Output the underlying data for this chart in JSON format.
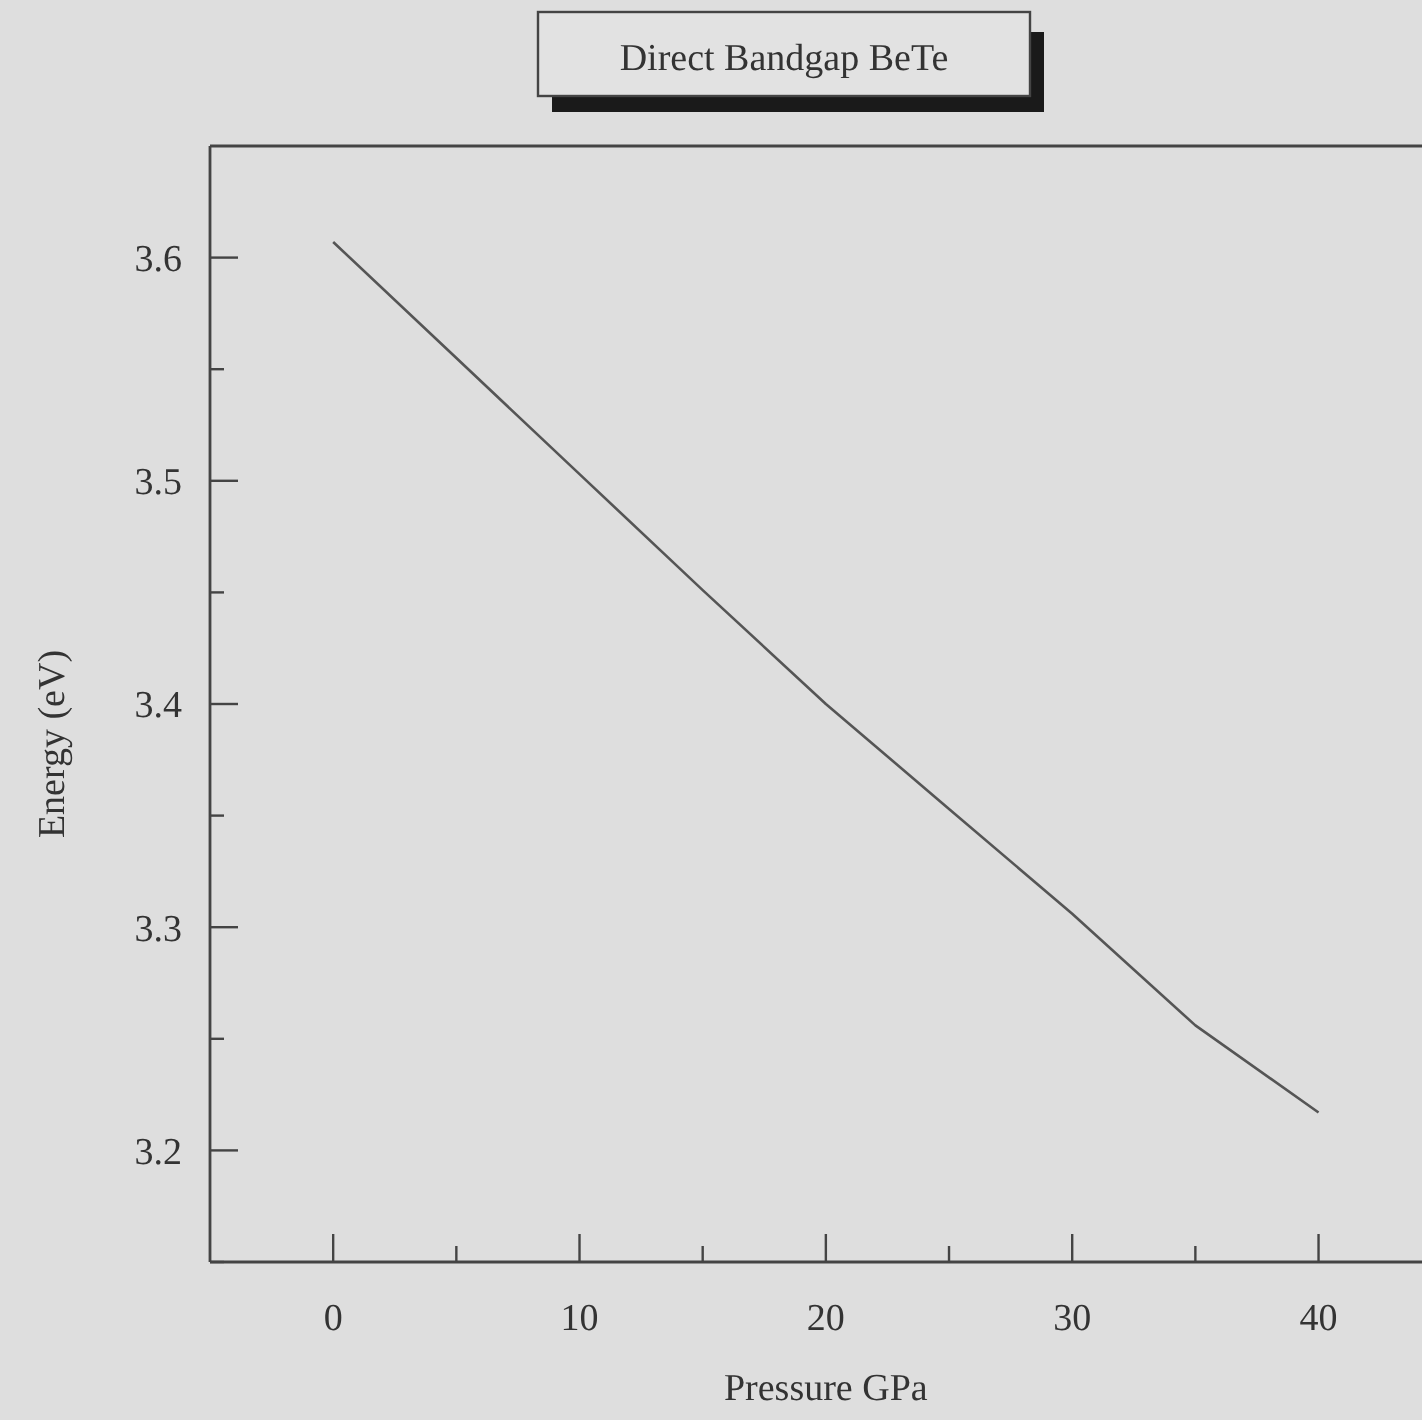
{
  "chart_data": {
    "type": "line",
    "title": "Direct Bandgap BeTe",
    "xlabel": "Pressure GPa",
    "ylabel": "Energy (eV)",
    "x": [
      0,
      5,
      10,
      15,
      20,
      25,
      30,
      35,
      40
    ],
    "series": [
      {
        "color": "#555555",
        "values": [
          3.607,
          3.555,
          3.503,
          3.451,
          3.4,
          3.353,
          3.306,
          3.256,
          3.217
        ]
      }
    ],
    "xlim": [
      -5,
      44.2
    ],
    "ylim": [
      3.15,
      3.65
    ],
    "xticks": [
      0,
      {
        "value": 5,
        "label": null
      },
      10,
      {
        "value": 15,
        "label": null
      },
      20,
      {
        "value": 25,
        "label": null
      },
      30,
      {
        "value": 35,
        "label": null
      },
      40
    ],
    "yticks": [
      {
        "value": 3.15,
        "label": null
      },
      3.2,
      {
        "value": 3.25,
        "label": null
      },
      3.3,
      {
        "value": 3.35,
        "label": null
      },
      3.4,
      {
        "value": 3.45,
        "label": null
      },
      3.5,
      {
        "value": 3.55,
        "label": null
      },
      3.6
    ],
    "grid": false,
    "marker": "none",
    "line_style": "solid"
  }
}
